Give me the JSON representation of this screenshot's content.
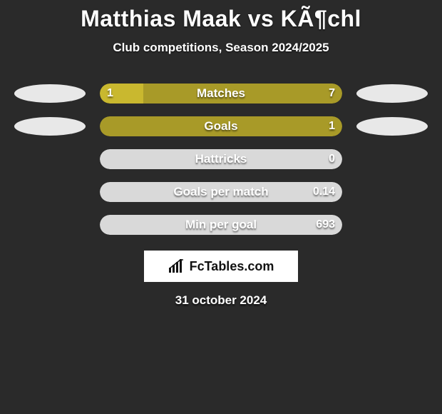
{
  "title": "Matthias Maak vs KÃ¶chl",
  "subtitle": "Club competitions, Season 2024/2025",
  "date": "31 october 2024",
  "colors": {
    "accent": "#c9b82f",
    "accent_dark": "#a89a28",
    "neutral": "#d9d9d9",
    "background": "#2a2a2a",
    "oval": "#e8e8e8"
  },
  "logo_text": "FcTables.com",
  "stats": [
    {
      "label": "Matches",
      "left_value": "1",
      "right_value": "7",
      "left_pct": 18,
      "right_pct": 82,
      "left_color": "#c9b82f",
      "right_color": "#a89a28",
      "show_left_oval": true,
      "show_right_oval": true
    },
    {
      "label": "Goals",
      "left_value": "",
      "right_value": "1",
      "left_pct": 0,
      "right_pct": 100,
      "left_color": "#c9b82f",
      "right_color": "#a89a28",
      "show_left_oval": true,
      "show_right_oval": true
    },
    {
      "label": "Hattricks",
      "left_value": "",
      "right_value": "0",
      "left_pct": 0,
      "right_pct": 100,
      "left_color": "#d9d9d9",
      "right_color": "#d9d9d9",
      "show_left_oval": false,
      "show_right_oval": false
    },
    {
      "label": "Goals per match",
      "left_value": "",
      "right_value": "0.14",
      "left_pct": 0,
      "right_pct": 100,
      "left_color": "#d9d9d9",
      "right_color": "#d9d9d9",
      "show_left_oval": false,
      "show_right_oval": false
    },
    {
      "label": "Min per goal",
      "left_value": "",
      "right_value": "693",
      "left_pct": 0,
      "right_pct": 100,
      "left_color": "#d9d9d9",
      "right_color": "#d9d9d9",
      "show_left_oval": false,
      "show_right_oval": false
    }
  ]
}
